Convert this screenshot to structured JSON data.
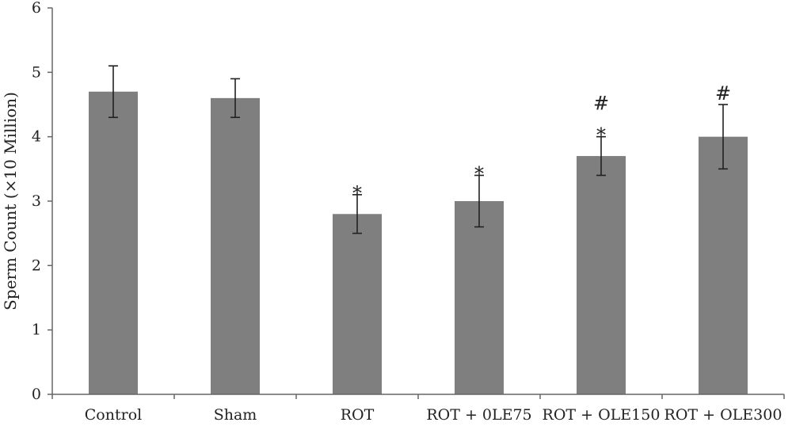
{
  "chart_data": {
    "type": "bar",
    "title": "",
    "xlabel": "",
    "ylabel": "Sperm Count (×10 Million)",
    "ylim": [
      0,
      6
    ],
    "yticks": [
      0,
      1,
      2,
      3,
      4,
      5,
      6
    ],
    "grid": false,
    "legend": "none",
    "bar_color": "#7f7f7f",
    "categories": [
      "Control",
      "Sham",
      "ROT",
      "ROT + 0LE75",
      "ROT + OLE150",
      "ROT + OLE300"
    ],
    "values": [
      4.7,
      4.6,
      2.8,
      3.0,
      3.7,
      4.0
    ],
    "error": [
      0.4,
      0.3,
      0.3,
      0.4,
      0.3,
      0.5
    ],
    "annotations": [
      {
        "category": "ROT",
        "marks": [
          "*"
        ]
      },
      {
        "category": "ROT + 0LE75",
        "marks": [
          "*"
        ]
      },
      {
        "category": "ROT + OLE150",
        "marks": [
          "*",
          "#"
        ]
      },
      {
        "category": "ROT + OLE300",
        "marks": [
          "#"
        ]
      }
    ]
  }
}
